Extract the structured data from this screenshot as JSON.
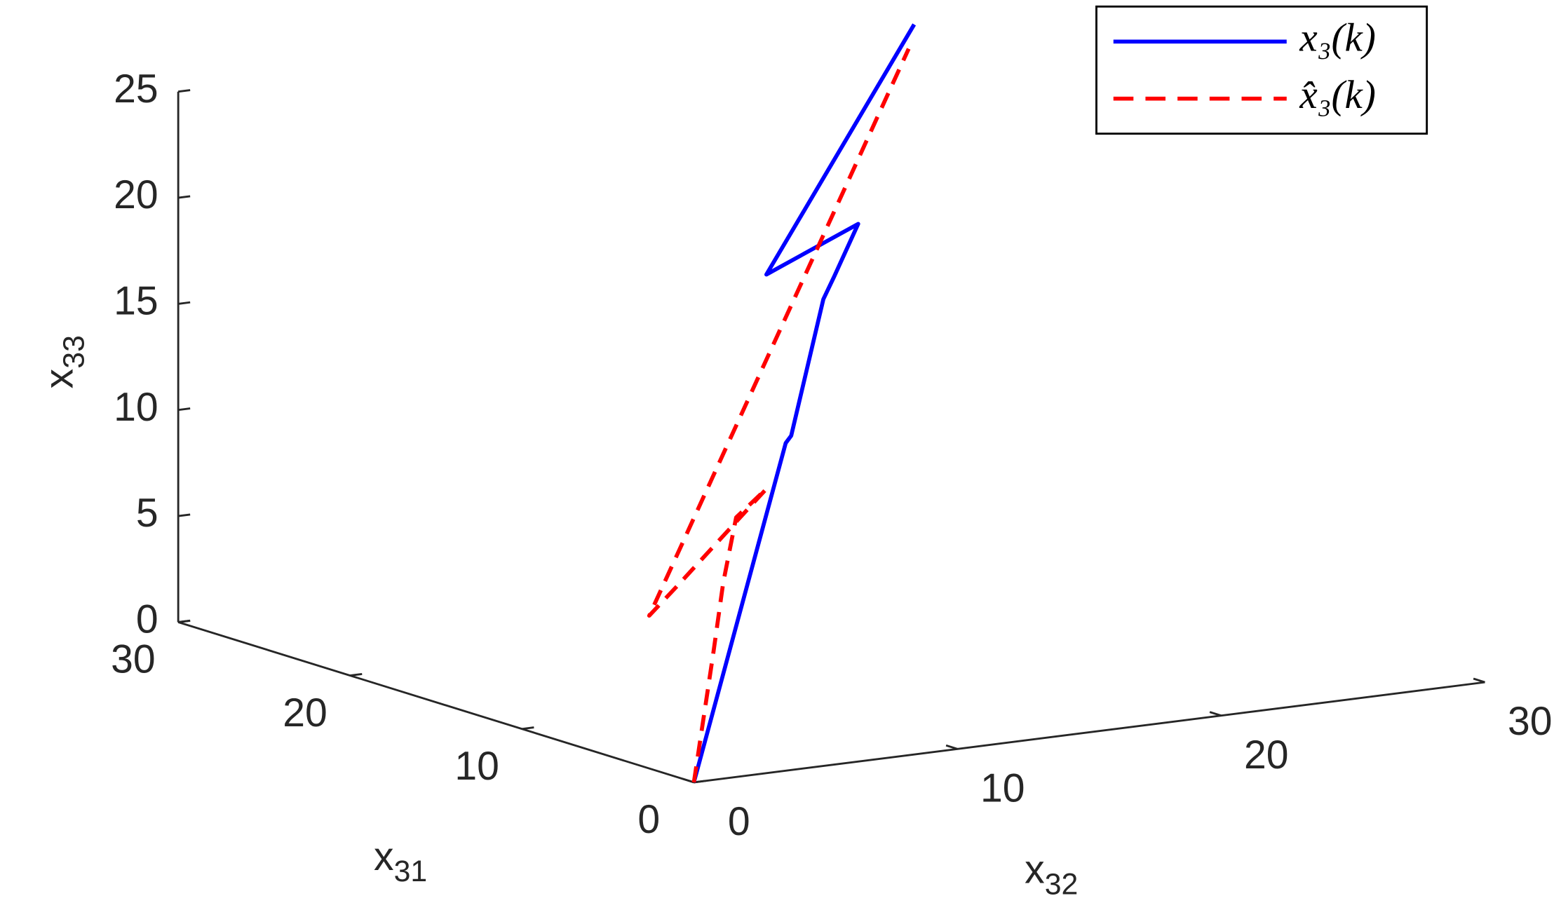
{
  "chart_data": {
    "type": "line3d",
    "xlabel": {
      "text": "x",
      "subscript": "31"
    },
    "ylabel": {
      "text": "x",
      "subscript": "32"
    },
    "zlabel": {
      "text": "x",
      "subscript": "33"
    },
    "xlim": [
      0,
      30
    ],
    "ylim": [
      0,
      30
    ],
    "zlim": [
      0,
      25
    ],
    "xticks": [
      0,
      10,
      20,
      30
    ],
    "yticks": [
      0,
      10,
      20,
      30
    ],
    "zticks": [
      0,
      5,
      10,
      15,
      20,
      25
    ],
    "legend": "upper right",
    "series": [
      {
        "name": "x₃(k)",
        "color": "#0000ff",
        "dash": false,
        "x": [
          0,
          10,
          10.6,
          14.1,
          15.3,
          17.9,
          7.9,
          24
        ],
        "y": [
          0,
          10,
          10.6,
          14.1,
          15.3,
          17.9,
          7.9,
          24
        ],
        "z": [
          0,
          11.9,
          12,
          17,
          17.6,
          19,
          20.7,
          25.9
        ]
      },
      {
        "name": "x̂₃(k)",
        "color": "#ff0000",
        "dash": true,
        "x": [
          0,
          2.1,
          3.2,
          4.6,
          7.9,
          0.8,
          2.6,
          23.4
        ],
        "y": [
          0,
          2.1,
          3.2,
          4.6,
          7.9,
          0,
          0,
          23.4
        ],
        "z": [
          0,
          5.2,
          8.1,
          10.6,
          10.6,
          9.2,
          7.2,
          25
        ]
      }
    ]
  }
}
